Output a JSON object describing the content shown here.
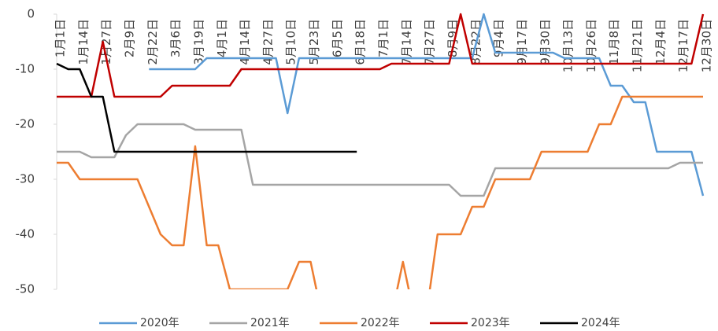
{
  "chart_data": {
    "type": "line",
    "categories": [
      "1月1日",
      null,
      "1月14日",
      null,
      "1月27日",
      null,
      "2月9日",
      null,
      "2月22日",
      null,
      "3月6日",
      null,
      "3月19日",
      null,
      "4月1日",
      null,
      "4月14日",
      null,
      "4月27日",
      null,
      "5月10日",
      null,
      "5月23日",
      null,
      "6月5日",
      null,
      "6月18日",
      null,
      "7月1日",
      null,
      "7月14日",
      null,
      "7月27日",
      null,
      "8月9日",
      null,
      "8月22日",
      null,
      "9月4日",
      null,
      "9月17日",
      null,
      "9月30日",
      null,
      "10月13日",
      null,
      "10月26日",
      null,
      "11月8日",
      null,
      "11月21日",
      null,
      "12月4日",
      null,
      "12月17日",
      null,
      "12月30日"
    ],
    "ylim": [
      -50,
      0
    ],
    "yticks": [
      0,
      -10,
      -20,
      -30,
      -40,
      -50
    ],
    "series": [
      {
        "name": "2020年",
        "color": "#5b9bd5",
        "values": [
          null,
          null,
          null,
          null,
          null,
          null,
          null,
          null,
          -10,
          -10,
          -10,
          -10,
          -10,
          -8,
          -8,
          -8,
          -8,
          -8,
          -8,
          -8,
          -18,
          -8,
          -8,
          -8,
          -8,
          -8,
          -8,
          -8,
          -8,
          -8,
          -8,
          -8,
          -8,
          -8,
          -8,
          -8,
          -8,
          0,
          -7,
          -7,
          -7,
          -7,
          -7,
          -7,
          -8,
          -8,
          -8,
          -8,
          -13,
          -13,
          -16,
          -16,
          -25,
          -25,
          -25,
          -25,
          -33
        ]
      },
      {
        "name": "2021年",
        "color": "#a5a5a5",
        "values": [
          -25,
          -25,
          -25,
          -26,
          -26,
          -26,
          -22,
          -20,
          -20,
          -20,
          -20,
          -20,
          -21,
          -21,
          -21,
          -21,
          -21,
          -31,
          -31,
          -31,
          -31,
          -31,
          -31,
          -31,
          -31,
          -31,
          -31,
          -31,
          -31,
          -31,
          -31,
          -31,
          -31,
          -31,
          -31,
          -33,
          -33,
          -33,
          -28,
          -28,
          -28,
          -28,
          -28,
          -28,
          -28,
          -28,
          -28,
          -28,
          -28,
          -28,
          -28,
          -28,
          -28,
          -28,
          -27,
          -27,
          -27
        ]
      },
      {
        "name": "2022年",
        "color": "#ed7d31",
        "values": [
          -27,
          -27,
          -30,
          -30,
          -30,
          -30,
          -30,
          -30,
          -35,
          -40,
          -42,
          -42,
          -24,
          -42,
          -42,
          -50,
          -50,
          -50,
          -50,
          -50,
          -50,
          -45,
          -45,
          -55,
          -55,
          -55,
          -55,
          -55,
          -55,
          -55,
          -45,
          -55,
          -55,
          -40,
          -40,
          -40,
          -35,
          -35,
          -30,
          -30,
          -30,
          -30,
          -25,
          -25,
          -25,
          -25,
          -25,
          -20,
          -20,
          -15,
          -15,
          -15,
          -15,
          -15,
          -15,
          -15,
          -15
        ]
      },
      {
        "name": "2023年",
        "color": "#c00000",
        "values": [
          -15,
          -15,
          -15,
          -15,
          -5,
          -15,
          -15,
          -15,
          -15,
          -15,
          -13,
          -13,
          -13,
          -13,
          -13,
          -13,
          -10,
          -10,
          -10,
          -10,
          -10,
          -10,
          -10,
          -10,
          -10,
          -10,
          -10,
          -10,
          -10,
          -9,
          -9,
          -9,
          -9,
          -9,
          -9,
          0,
          -9,
          -9,
          -9,
          -9,
          -9,
          -9,
          -9,
          -9,
          -9,
          -9,
          -9,
          -9,
          -9,
          -9,
          -9,
          -9,
          -9,
          -9,
          -9,
          -9,
          0
        ]
      },
      {
        "name": "2024年",
        "color": "#000000",
        "values": [
          -9,
          -10,
          -10,
          -15,
          -15,
          -25,
          -25,
          -25,
          -25,
          -25,
          -25,
          -25,
          -25,
          -25,
          -25,
          -25,
          -25,
          -25,
          -25,
          -25,
          -25,
          -25,
          -25,
          -25,
          -25,
          -25,
          -25,
          null,
          null,
          null,
          null,
          null,
          null,
          null,
          null,
          null,
          null,
          null,
          null,
          null,
          null,
          null,
          null,
          null,
          null,
          null,
          null,
          null,
          null,
          null,
          null,
          null,
          null,
          null,
          null,
          null,
          null
        ]
      }
    ]
  }
}
